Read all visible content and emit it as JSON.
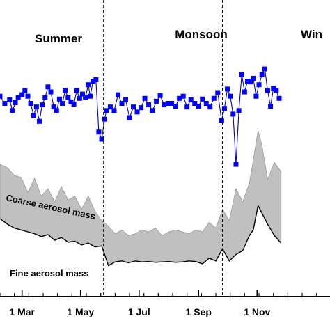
{
  "chart_data": {
    "type": "line",
    "title": "",
    "xlabel": "",
    "ylabel": "",
    "grid": false,
    "x_range": [
      "2005-02-06",
      "2006-01-16"
    ],
    "x_ticks": [
      {
        "date": "2005-03-01",
        "label": "1 Mar"
      },
      {
        "date": "2005-05-01",
        "label": "1 May"
      },
      {
        "date": "2005-07-01",
        "label": "1 Jul"
      },
      {
        "date": "2005-09-01",
        "label": "1 Sep"
      },
      {
        "date": "2005-11-01",
        "label": "1 Nov"
      }
    ],
    "season_boundaries": [
      "2005-05-25",
      "2005-09-26"
    ],
    "seasons": [
      "Summer",
      "Monsoon",
      "Win"
    ],
    "annotations": {
      "coarse": "Coarse aerosol mass",
      "fine": "Fine aerosol mass"
    },
    "colors": {
      "ratio_series": "#0000cc",
      "ratio_marker": "#0000ff",
      "coarse_fill": "#c0c0c0",
      "fine_line": "#000000",
      "boundary": "#000000"
    },
    "series": [
      {
        "type": "line",
        "style": "line-with-square-markers",
        "x": [
          "2005-02-06",
          "2005-02-11",
          "2005-02-16",
          "2005-02-19",
          "2005-02-22",
          "2005-02-25",
          "2005-03-01",
          "2005-03-04",
          "2005-03-07",
          "2005-03-10",
          "2005-03-13",
          "2005-03-16",
          "2005-03-19",
          "2005-03-22",
          "2005-03-25",
          "2005-03-28",
          "2005-03-31",
          "2005-04-03",
          "2005-04-06",
          "2005-04-09",
          "2005-04-12",
          "2005-04-15",
          "2005-04-18",
          "2005-04-21",
          "2005-04-24",
          "2005-04-27",
          "2005-04-30",
          "2005-05-03",
          "2005-05-06",
          "2005-05-09",
          "2005-05-11",
          "2005-05-14",
          "2005-05-17",
          "2005-05-20",
          "2005-05-23",
          "2005-05-26",
          "2005-05-28",
          "2005-06-01",
          "2005-06-05",
          "2005-06-09",
          "2005-06-13",
          "2005-06-17",
          "2005-06-21",
          "2005-06-25",
          "2005-06-29",
          "2005-07-03",
          "2005-07-07",
          "2005-07-11",
          "2005-07-15",
          "2005-07-19",
          "2005-07-23",
          "2005-07-27",
          "2005-07-31",
          "2005-08-04",
          "2005-08-08",
          "2005-08-12",
          "2005-08-16",
          "2005-08-20",
          "2005-08-24",
          "2005-08-28",
          "2005-09-01",
          "2005-09-05",
          "2005-09-09",
          "2005-09-13",
          "2005-09-17",
          "2005-09-21",
          "2005-09-25",
          "2005-09-28",
          "2005-10-01",
          "2005-10-04",
          "2005-10-07",
          "2005-10-10",
          "2005-10-13",
          "2005-10-16",
          "2005-10-19",
          "2005-10-22",
          "2005-10-25",
          "2005-10-28",
          "2005-10-31",
          "2005-11-03",
          "2005-11-06",
          "2005-11-09",
          "2005-11-12",
          "2005-11-15",
          "2005-11-18",
          "2005-11-21",
          "2005-11-24"
        ],
        "values": [
          0.6,
          0.5,
          0.55,
          0.4,
          0.51,
          0.58,
          0.62,
          0.68,
          0.6,
          0.5,
          0.33,
          0.45,
          0.25,
          0.48,
          0.58,
          0.73,
          0.66,
          0.45,
          0.4,
          0.56,
          0.5,
          0.68,
          0.58,
          0.52,
          0.49,
          0.68,
          0.57,
          0.63,
          0.58,
          0.76,
          0.6,
          0.81,
          0.83,
          0.1,
          0.0,
          0.28,
          0.4,
          0.45,
          0.4,
          0.62,
          0.5,
          0.55,
          0.3,
          0.45,
          0.38,
          0.44,
          0.57,
          0.48,
          0.4,
          0.53,
          0.61,
          0.48,
          0.5,
          0.5,
          0.46,
          0.57,
          0.6,
          0.45,
          0.55,
          0.5,
          0.46,
          0.56,
          0.5,
          0.45,
          0.57,
          0.65,
          0.26,
          0.43,
          0.7,
          0.6,
          0.35,
          -0.35,
          0.4,
          0.9,
          0.66,
          0.81,
          0.8,
          0.85,
          0.6,
          0.76,
          0.9,
          0.98,
          0.68,
          0.46,
          0.71,
          0.68,
          0.57
        ]
      },
      {
        "type": "area",
        "name": "Coarse aerosol mass",
        "x": [
          "2005-02-06",
          "2005-02-14",
          "2005-02-21",
          "2005-02-28",
          "2005-03-07",
          "2005-03-14",
          "2005-03-21",
          "2005-03-28",
          "2005-04-04",
          "2005-04-11",
          "2005-04-18",
          "2005-04-25",
          "2005-05-02",
          "2005-05-09",
          "2005-05-16",
          "2005-05-23",
          "2005-05-30",
          "2005-06-06",
          "2005-06-13",
          "2005-06-20",
          "2005-06-27",
          "2005-07-04",
          "2005-07-11",
          "2005-07-18",
          "2005-07-25",
          "2005-08-01",
          "2005-08-08",
          "2005-08-15",
          "2005-08-22",
          "2005-08-29",
          "2005-09-05",
          "2005-09-12",
          "2005-09-19",
          "2005-09-26",
          "2005-10-03",
          "2005-10-10",
          "2005-10-17",
          "2005-10-24",
          "2005-10-28",
          "2005-11-02",
          "2005-11-06",
          "2005-11-12",
          "2005-11-19",
          "2005-11-26"
        ],
        "upper": [
          4.6,
          4.4,
          4.0,
          3.9,
          3.1,
          3.85,
          2.9,
          3.3,
          2.6,
          3.4,
          2.7,
          2.9,
          2.2,
          2.9,
          2.1,
          1.6,
          1.3,
          0.9,
          1.1,
          0.8,
          0.9,
          1.1,
          1.0,
          1.2,
          0.8,
          1.0,
          1.1,
          1.0,
          0.9,
          1.1,
          1.0,
          1.5,
          1.2,
          2.2,
          1.6,
          3.3,
          2.6,
          3.6,
          4.8,
          6.4,
          5.6,
          3.8,
          4.7,
          4.2
        ],
        "lower": [
          1.7,
          1.4,
          1.2,
          1.1,
          1.0,
          0.9,
          0.75,
          0.85,
          0.55,
          0.7,
          0.45,
          0.5,
          0.3,
          0.4,
          0.2,
          0.25,
          -0.8,
          -0.6,
          -0.55,
          -0.65,
          -0.55,
          -0.6,
          -0.58,
          -0.62,
          -0.6,
          -0.58,
          -0.62,
          -0.6,
          -0.55,
          -0.58,
          -0.7,
          -0.4,
          -0.55,
          0.1,
          -0.55,
          -0.2,
          0.0,
          0.8,
          1.1,
          2.4,
          2.0,
          1.4,
          0.8,
          0.4
        ]
      }
    ]
  }
}
